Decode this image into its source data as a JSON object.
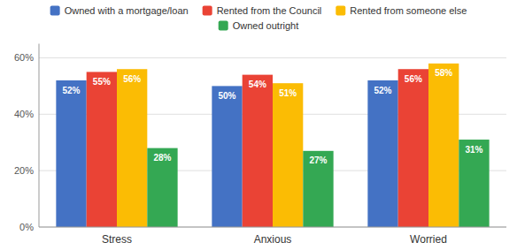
{
  "chart_data": {
    "type": "bar",
    "categories": [
      "Stress",
      "Anxious",
      "Worried"
    ],
    "series": [
      {
        "name": "Owned with a mortgage/loan",
        "color": "#4472C4",
        "values": [
          52,
          50,
          52
        ],
        "value_labels": [
          "52%",
          "50%",
          "52%"
        ]
      },
      {
        "name": "Rented from the Council",
        "color": "#EA4335",
        "values": [
          55,
          54,
          56
        ],
        "value_labels": [
          "55%",
          "54%",
          "56%"
        ]
      },
      {
        "name": "Rented from someone else",
        "color": "#FBBC04",
        "values": [
          56,
          51,
          58
        ],
        "value_labels": [
          "56%",
          "51%",
          "58%"
        ]
      },
      {
        "name": "Owned outright",
        "color": "#34A853",
        "values": [
          28,
          27,
          31
        ],
        "value_labels": [
          "28%",
          "27%",
          "31%"
        ]
      }
    ],
    "ylim": [
      0,
      65
    ],
    "yticks": [
      {
        "value": 0,
        "label": "0%"
      },
      {
        "value": 20,
        "label": "20%"
      },
      {
        "value": 40,
        "label": "40%"
      },
      {
        "value": 60,
        "label": "60%"
      }
    ],
    "grid": true,
    "data_labels": true,
    "legend": "top"
  }
}
